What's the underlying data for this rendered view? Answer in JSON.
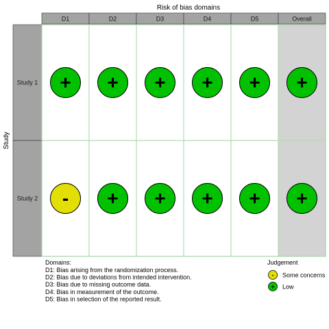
{
  "chart_data": {
    "type": "heatmap",
    "title": "Risk of bias domains",
    "ylabel": "Study",
    "columns": [
      "D1",
      "D2",
      "D3",
      "D4",
      "D5",
      "Overall"
    ],
    "rows": [
      "Study 1",
      "Study 2"
    ],
    "values": [
      [
        "Low",
        "Low",
        "Low",
        "Low",
        "Low",
        "Low"
      ],
      [
        "Some concerns",
        "Low",
        "Low",
        "Low",
        "Low",
        "Low"
      ]
    ],
    "symbols": {
      "Low": "+",
      "Some concerns": "-"
    },
    "colors": {
      "Low": "#02C100",
      "Some concerns": "#E2DF07"
    },
    "domains_heading": "Domains:",
    "domains": [
      "D1: Bias arising from the randomization process.",
      "D2: Bias due to deviations from intended intervention.",
      "D3: Bias due to missing outcome data.",
      "D4: Bias in measurement of the outcome.",
      "D5: Bias in selection of the reported result."
    ],
    "legend_title": "Judgement",
    "legend": [
      {
        "label": "Some concerns",
        "symbol": "-",
        "judgement": "Some concerns"
      },
      {
        "label": "Low",
        "symbol": "+",
        "judgement": "Low"
      }
    ]
  }
}
